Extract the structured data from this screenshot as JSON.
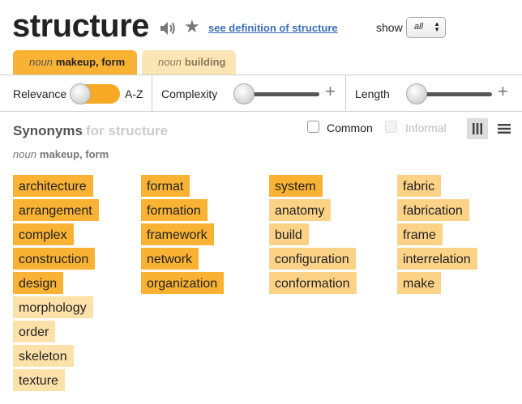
{
  "header": {
    "word": "structure",
    "definition_link": "see definition of structure",
    "show_label": "show",
    "show_value": "all"
  },
  "tabs": [
    {
      "pos": "noun",
      "sense": "makeup, form",
      "active": true
    },
    {
      "pos": "noun",
      "sense": "building",
      "active": false
    }
  ],
  "filters": {
    "relevance_label": "Relevance",
    "az_label": "A-Z",
    "complexity_label": "Complexity",
    "length_label": "Length",
    "plus": "+"
  },
  "synonyms": {
    "heading": "Synonyms",
    "heading_for": "for structure",
    "common_label": "Common",
    "informal_label": "Informal",
    "sense_pos": "noun",
    "sense": "makeup, form",
    "columns": [
      [
        {
          "word": "architecture",
          "relevance": 3
        },
        {
          "word": "arrangement",
          "relevance": 3
        },
        {
          "word": "complex",
          "relevance": 3
        },
        {
          "word": "construction",
          "relevance": 3
        },
        {
          "word": "design",
          "relevance": 3
        },
        {
          "word": "morphology",
          "relevance": 1
        },
        {
          "word": "order",
          "relevance": 1
        },
        {
          "word": "skeleton",
          "relevance": 1
        },
        {
          "word": "texture",
          "relevance": 1
        }
      ],
      [
        {
          "word": "format",
          "relevance": 3
        },
        {
          "word": "formation",
          "relevance": 3
        },
        {
          "word": "framework",
          "relevance": 3
        },
        {
          "word": "network",
          "relevance": 3
        },
        {
          "word": "organization",
          "relevance": 3
        }
      ],
      [
        {
          "word": "system",
          "relevance": 3
        },
        {
          "word": "anatomy",
          "relevance": 2
        },
        {
          "word": "build",
          "relevance": 2
        },
        {
          "word": "configuration",
          "relevance": 2
        },
        {
          "word": "conformation",
          "relevance": 2
        }
      ],
      [
        {
          "word": "fabric",
          "relevance": 2
        },
        {
          "word": "fabrication",
          "relevance": 2
        },
        {
          "word": "frame",
          "relevance": 2
        },
        {
          "word": "interrelation",
          "relevance": 2
        },
        {
          "word": "make",
          "relevance": 2
        }
      ]
    ]
  }
}
